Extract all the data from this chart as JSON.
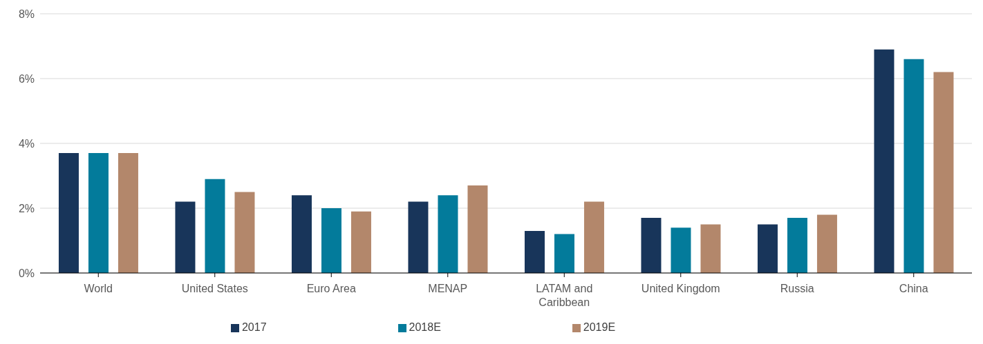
{
  "chart_data": {
    "type": "bar",
    "categories": [
      "World",
      "United States",
      "Euro Area",
      "MENAP",
      "LATAM and Caribbean",
      "United Kingdom",
      "Russia",
      "China"
    ],
    "series": [
      {
        "name": "2017",
        "color": "#18355a",
        "values": [
          3.7,
          2.2,
          2.4,
          2.2,
          1.3,
          1.7,
          1.5,
          6.9
        ]
      },
      {
        "name": "2018E",
        "color": "#037b9b",
        "values": [
          3.7,
          2.9,
          2.0,
          2.4,
          1.2,
          1.4,
          1.7,
          6.6
        ]
      },
      {
        "name": "2019E",
        "color": "#b3876b",
        "values": [
          3.7,
          2.5,
          1.9,
          2.7,
          2.2,
          1.5,
          1.8,
          6.2
        ]
      }
    ],
    "ylim": [
      0,
      8
    ],
    "yticks": [
      {
        "value": 0,
        "label": "0%"
      },
      {
        "value": 2,
        "label": "2%"
      },
      {
        "value": 4,
        "label": "4%"
      },
      {
        "value": 6,
        "label": "6%"
      },
      {
        "value": 8,
        "label": "8%"
      }
    ],
    "grid": "y",
    "legend": "bottom"
  }
}
